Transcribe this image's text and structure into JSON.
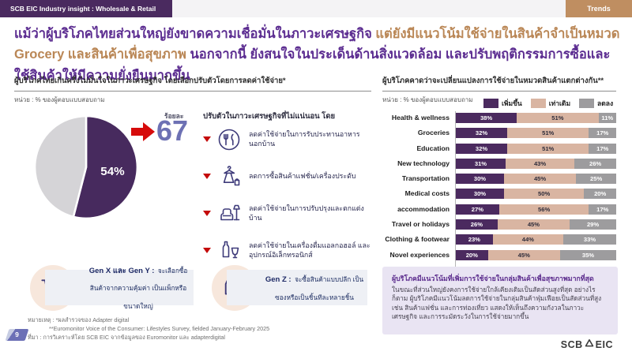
{
  "header": {
    "badge": "SCB EIC Industry insight : Wholesale & Retail",
    "tag": "Trends"
  },
  "title": {
    "part1": "แม้ว่าผู้บริโภคไทยส่วนใหญ่ยังขาดความเชื่อมั่นในภาวะเศรษฐกิจ ",
    "part2": "แต่ยังมีแนวโน้มใช้จ่ายในสินค้าจำเป็นหมวด Grocery และสินค้าเพื่อสุขภาพ ",
    "part3": "นอกจากนี้ ยังสนใจในประเด็นด้านสิ่งแวดล้อม และปรับพฤติกรรมการซื้อและใช้สินค้าให้มีความยั่งยืนมากขึ้น"
  },
  "left_panel": {
    "section_title": "ผู้บริโภคไทยเกินครึ่งไม่มั่นใจในภาวะเศรษฐกิจ โดยเลือกปรับตัวโดยการลดค่าใช้จ่าย*",
    "unit_label": "หน่วย : % ของผู้ตอบแบบสอบถาม",
    "pie": {
      "label": "54%"
    },
    "percent_word": "ร้อยละ",
    "percent_value": "67",
    "list_header": "ปรับตัวในภาวะเศรษฐกิจที่ไม่แน่นอน โดย",
    "items": [
      {
        "icon": "dining-icon",
        "label": "ลดค่าใช้จ่ายในการรับประทานอาหารนอกบ้าน"
      },
      {
        "icon": "fashion-icon",
        "label": "ลดการซื้อสินค้าแฟชั่น/เครื่องประดับ"
      },
      {
        "icon": "home-decor-icon",
        "label": "ลดค่าใช้จ่ายในการปรับปรุงและตกแต่งบ้าน"
      },
      {
        "icon": "alcohol-electronics-icon",
        "label": "ลดค่าใช้จ่ายในเครื่องดื่มแอลกอฮอล์ และอุปกรณ์อิเล็กทรอนิกส์"
      }
    ]
  },
  "right_panel": {
    "section_title": "ผู้บริโภคคาดว่าจะเปลี่ยนแปลงการใช้จ่ายในหมวดสินค้าแตกต่างกัน**",
    "unit_label": "หน่วย : % ของผู้ตอบแบบสอบถาม"
  },
  "chart_data": [
    {
      "type": "pie",
      "title": "ผู้บริโภคไทยเกินครึ่งไม่มั่นใจในภาวะเศรษฐกิจ โดยเลือกปรับตัวโดยการลดค่าใช้จ่าย",
      "unit": "% ของผู้ตอบแบบสอบถาม",
      "values": [
        54,
        46
      ],
      "labels": [
        "54%",
        ""
      ],
      "colors": [
        "#472a5e",
        "#d5d4d7"
      ],
      "annotation": "ร้อยละ 67 ปรับตัวในภาวะเศรษฐกิจที่ไม่แน่นอน"
    },
    {
      "type": "bar",
      "orientation": "horizontal",
      "stacked": true,
      "title": "ผู้บริโภคคาดว่าจะเปลี่ยนแปลงการใช้จ่ายในหมวดสินค้าแตกต่างกัน",
      "unit": "% ของผู้ตอบแบบสอบถาม",
      "categories": [
        "Health & wellness",
        "Groceries",
        "Education",
        "New technology",
        "Transportation",
        "Medical costs",
        "accommodation",
        "Travel or holidays",
        "Clothing & footwear",
        "Novel experiences"
      ],
      "series": [
        {
          "name": "เพิ่มขึ้น",
          "values": [
            38,
            32,
            32,
            31,
            30,
            30,
            27,
            26,
            23,
            20
          ]
        },
        {
          "name": "เท่าเดิม",
          "values": [
            51,
            51,
            51,
            43,
            45,
            50,
            56,
            45,
            44,
            45
          ]
        },
        {
          "name": "ลดลง",
          "values": [
            11,
            17,
            17,
            26,
            25,
            20,
            17,
            29,
            33,
            35
          ]
        }
      ],
      "colors": [
        "#4b2a5f",
        "#d9b5a2",
        "#9d9c9e"
      ],
      "legend_position": "top",
      "xlim": [
        0,
        100
      ]
    }
  ],
  "insight_box": {
    "title": "ผู้บริโภคมีแนวโน้มที่เพิ่มการใช้จ่ายในกลุ่มสินค้าเพื่อสุขภาพมากที่สุด",
    "body": "ในขณะที่ส่วนใหญ่ยังคงการใช้จ่ายใกล้เคียงเดิมเป็นสัดส่วนสูงที่สุด อย่างไรก็ตาม ผู้บริโภคมีแนวโน้มลดการใช้จ่ายในกลุ่มสินค้าฟุ่มเฟือยเป็นสัดส่วนที่สูง เช่น สินค้าแฟชั่น และการท่องเที่ยว แสดงให้เห็นถึงความกังวลในภาวะเศรษฐกิจ และการระมัดระวังในการใช้จ่ายมากขึ้น"
  },
  "gen_boxes": [
    {
      "icon": "shopping-cart-icon",
      "title": "Gen X และ Gen Y :",
      "body": "จะเลือกซื้อสินค้าจากความคุ้มค่า เป็นแพ็กหรือขนาดใหญ่"
    },
    {
      "icon": "shopping-bags-icon",
      "title": "Gen Z :",
      "body": "จะซื้อสินค้าแบบปลีก เป็นซองหรือเป็นชิ้นทีละหลายชิ้น"
    }
  ],
  "footnotes": {
    "note1": "หมายเหตุ : *ผลสำรวจของ Adapter digital",
    "note2": "**Euromonitor Voice of the Consumer: Lifestyles Survey, fielded January-February 2025",
    "source": "ที่มา : การวิเคราะห์โดย SCB EIC จากข้อมูลของ Euromonitor และ adapterdigital"
  },
  "page_number": "9",
  "logo": {
    "left": "SCB",
    "right": "EIC"
  }
}
